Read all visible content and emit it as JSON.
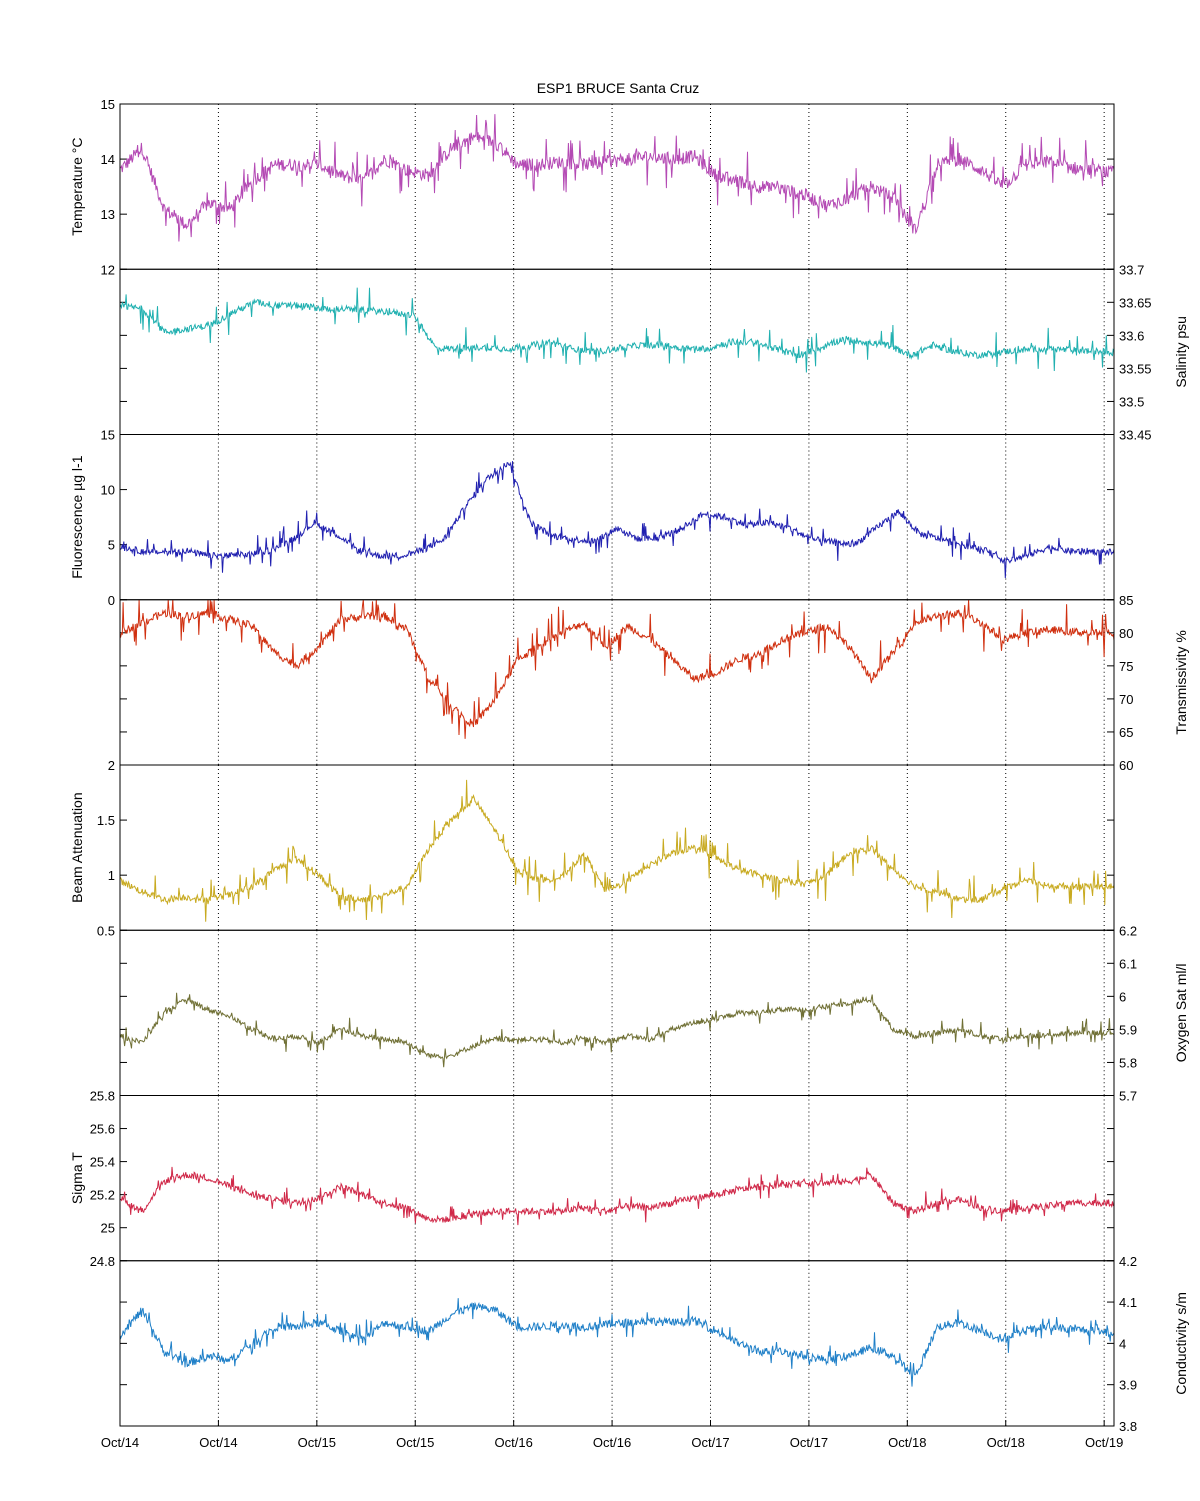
{
  "chart_data": {
    "type": "line",
    "title": "ESP1 BRUCE Santa Cruz",
    "x_tick_labels": [
      "Oct/14",
      "Oct/14",
      "Oct/15",
      "Oct/15",
      "Oct/16",
      "Oct/16",
      "Oct/17",
      "Oct/17",
      "Oct/18",
      "Oct/18",
      "Oct/19"
    ],
    "grid": "vertical-dotted",
    "panels": [
      {
        "ylabel": "Temperature °C",
        "side": "left",
        "color": "#b44ab4",
        "ylim": [
          12,
          15
        ],
        "yticks": [
          "15",
          "14",
          "13",
          "12"
        ],
        "baseline": [
          13.8,
          14.2,
          13.1,
          12.8,
          13.2,
          13.1,
          13.6,
          13.9,
          13.9,
          13.9,
          13.7,
          13.6,
          14.0,
          13.8,
          13.7,
          14.2,
          14.4,
          14.3,
          13.9,
          13.9,
          13.95,
          13.9,
          13.95,
          14.0,
          14.05,
          14.0,
          14.05,
          13.7,
          13.6,
          13.5,
          13.45,
          13.35,
          13.15,
          13.3,
          13.5,
          13.3,
          12.7,
          13.9,
          14.0,
          13.8,
          13.5,
          13.9,
          13.95,
          13.85,
          13.8,
          13.75
        ],
        "noise": 0.12,
        "spike": 0.5
      },
      {
        "ylabel": "Salinity psu",
        "side": "right",
        "color": "#20b0b0",
        "ylim": [
          33.45,
          33.7
        ],
        "yticks": [
          "33.7",
          "33.65",
          "33.6",
          "33.55",
          "33.5",
          "33.45"
        ],
        "baseline": [
          33.645,
          33.64,
          33.605,
          33.61,
          33.615,
          33.635,
          33.65,
          33.645,
          33.645,
          33.64,
          33.64,
          33.638,
          33.635,
          33.63,
          33.58,
          33.58,
          33.582,
          33.58,
          33.583,
          33.59,
          33.58,
          33.575,
          33.58,
          33.585,
          33.585,
          33.58,
          33.58,
          33.59,
          33.59,
          33.58,
          33.57,
          33.58,
          33.595,
          33.59,
          33.585,
          33.57,
          33.585,
          33.575,
          33.57,
          33.575,
          33.578,
          33.58,
          33.578,
          33.576,
          33.575
        ],
        "noise": 0.005,
        "spike": 0.03
      },
      {
        "ylabel": "Fluorescence µg l-1",
        "side": "left",
        "color": "#2020b0",
        "ylim": [
          0,
          15
        ],
        "yticks": [
          "15",
          "10",
          "5",
          "0"
        ],
        "baseline": [
          4.8,
          4.4,
          4.3,
          4.5,
          4.0,
          4.0,
          4.1,
          4.5,
          5.5,
          7.0,
          6.0,
          4.5,
          4.0,
          4.0,
          4.5,
          5.5,
          8.5,
          11.0,
          12.5,
          7.0,
          5.8,
          5.5,
          5.3,
          6.5,
          5.5,
          5.6,
          6.5,
          7.8,
          7.5,
          6.8,
          7.0,
          6.5,
          5.5,
          5.2,
          5.0,
          6.5,
          8.0,
          6.0,
          5.5,
          5.0,
          4.5,
          3.5,
          4.0,
          4.8,
          4.4,
          4.4,
          4.3
        ],
        "noise": 0.3,
        "spike": 1.5
      },
      {
        "ylabel": "Transmissivity %",
        "side": "right",
        "color": "#d03010",
        "ylim": [
          60,
          85
        ],
        "yticks": [
          "85",
          "80",
          "75",
          "70",
          "65",
          "60"
        ],
        "baseline": [
          80,
          81.5,
          83,
          82.5,
          83,
          82,
          81,
          77,
          75,
          78,
          82,
          82.5,
          82.5,
          80.5,
          73,
          69,
          66,
          70,
          76,
          78,
          80,
          81.5,
          78,
          81,
          79,
          76,
          73,
          74,
          76,
          77,
          79,
          80,
          81,
          78,
          73,
          77,
          81.5,
          82.5,
          83,
          81.5,
          79,
          80,
          80.5,
          80.2,
          80,
          80
        ],
        "noise": 0.6,
        "spike": 4
      },
      {
        "ylabel": "Beam Attenuation",
        "side": "left",
        "color": "#c8aa20",
        "ylim": [
          0.5,
          2
        ],
        "yticks": [
          "2",
          "1.5",
          "1",
          "0.5"
        ],
        "baseline": [
          0.95,
          0.85,
          0.78,
          0.8,
          0.78,
          0.82,
          0.9,
          1.05,
          1.15,
          1.0,
          0.8,
          0.78,
          0.82,
          0.9,
          1.25,
          1.5,
          1.7,
          1.4,
          1.05,
          0.95,
          0.98,
          1.2,
          0.85,
          0.95,
          1.1,
          1.2,
          1.25,
          1.15,
          1.05,
          1.0,
          0.95,
          0.92,
          1.0,
          1.2,
          1.25,
          1.05,
          0.9,
          0.85,
          0.78,
          0.78,
          0.88,
          0.95,
          0.9,
          0.9,
          0.9,
          0.9
        ],
        "noise": 0.03,
        "spike": 0.2
      },
      {
        "ylabel": "Oxygen Sat ml/l",
        "side": "right",
        "color": "#707035",
        "ylim": [
          5.7,
          6.2
        ],
        "yticks": [
          "6.2",
          "6.1",
          "6",
          "5.9",
          "5.8",
          "5.7"
        ],
        "baseline": [
          5.88,
          5.86,
          5.95,
          5.99,
          5.96,
          5.94,
          5.9,
          5.87,
          5.88,
          5.86,
          5.9,
          5.88,
          5.87,
          5.86,
          5.82,
          5.82,
          5.85,
          5.87,
          5.87,
          5.87,
          5.86,
          5.87,
          5.86,
          5.88,
          5.87,
          5.9,
          5.92,
          5.93,
          5.95,
          5.95,
          5.96,
          5.96,
          5.97,
          5.98,
          5.99,
          5.9,
          5.88,
          5.89,
          5.9,
          5.88,
          5.87,
          5.88,
          5.88,
          5.89,
          5.89,
          5.89
        ],
        "noise": 0.008,
        "spike": 0.04
      },
      {
        "ylabel": "Sigma T",
        "side": "left",
        "color": "#d02848",
        "ylim": [
          24.8,
          25.8
        ],
        "yticks": [
          "25.8",
          "25.6",
          "25.4",
          "25.2",
          "25",
          "24.8"
        ],
        "baseline": [
          25.18,
          25.1,
          25.28,
          25.32,
          25.3,
          25.25,
          25.2,
          25.17,
          25.15,
          25.18,
          25.25,
          25.2,
          25.15,
          25.12,
          25.05,
          25.05,
          25.08,
          25.1,
          25.1,
          25.1,
          25.1,
          25.12,
          25.1,
          25.13,
          25.12,
          25.15,
          25.18,
          25.2,
          25.23,
          25.25,
          25.26,
          25.27,
          25.27,
          25.28,
          25.32,
          25.15,
          25.1,
          25.15,
          25.17,
          25.12,
          25.1,
          25.12,
          25.13,
          25.15,
          25.15,
          25.15
        ],
        "noise": 0.02,
        "spike": 0.08
      },
      {
        "ylabel": "Conductivity s/m",
        "side": "right",
        "color": "#2080c8",
        "ylim": [
          3.8,
          4.2
        ],
        "yticks": [
          "4.2",
          "4.1",
          "4",
          "3.9",
          "3.8"
        ],
        "baseline": [
          4.02,
          4.08,
          3.98,
          3.95,
          3.97,
          3.96,
          4.0,
          4.04,
          4.04,
          4.05,
          4.03,
          4.01,
          4.05,
          4.04,
          4.03,
          4.07,
          4.09,
          4.08,
          4.04,
          4.04,
          4.045,
          4.04,
          4.045,
          4.05,
          4.055,
          4.05,
          4.055,
          4.03,
          4.0,
          3.98,
          3.98,
          3.97,
          3.96,
          3.97,
          3.99,
          3.97,
          3.92,
          4.04,
          4.05,
          4.03,
          4.01,
          4.03,
          4.04,
          4.035,
          4.03,
          4.025
        ],
        "noise": 0.01,
        "spike": 0.035
      }
    ]
  }
}
